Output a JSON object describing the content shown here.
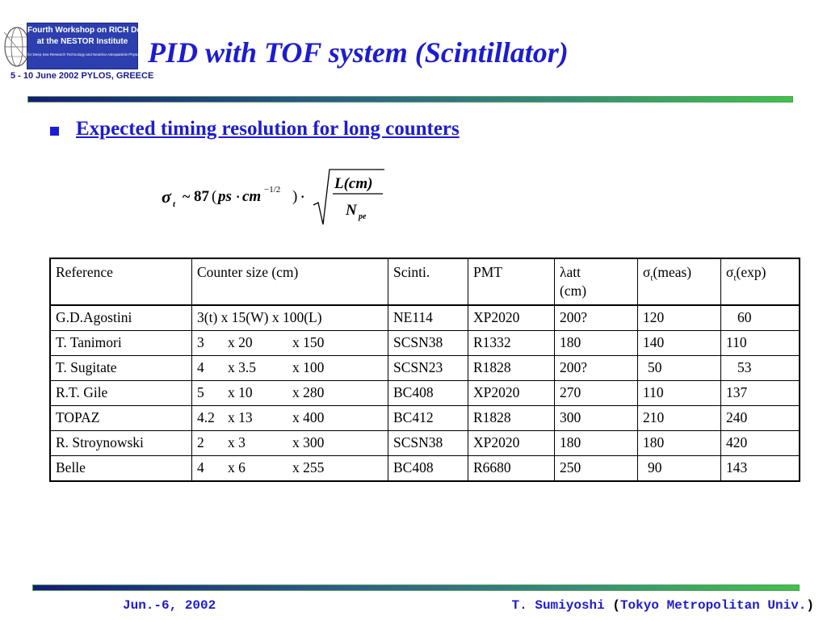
{
  "colors": {
    "title": "#1c1cd0",
    "rule_start": "#1a1a78",
    "rule_end": "#42c24a"
  },
  "logo": {
    "line1": "Fourth Workshop on RICH Detectors",
    "line2": "at the NESTOR Institute",
    "line3": "for Deep Sea Research Technology and Neutrino Astroparticle Physics",
    "date": "5 - 10 June 2002  PYLOS, GREECE"
  },
  "slide": {
    "title": "PID with TOF system (Scintillator)",
    "bullet": "Expected timing resolution for long counters"
  },
  "formula": {
    "sigma": "σ",
    "sigma_sub": "t",
    "tilde": "~",
    "coef": "87",
    "open": "(",
    "ps": "ps",
    "dot": "·",
    "cm": "cm",
    "exp": "−1/2",
    "close": ")",
    "dot2": "·",
    "num": "L(cm)",
    "den": "N",
    "den_sub": "pe"
  },
  "table": {
    "headers": {
      "reference": "Reference",
      "size": "Counter size (cm)",
      "scinti": "Scinti.",
      "pmt": "PMT",
      "lambda_sym": "λ",
      "lambda_rest": "att",
      "lambda_unit": "(cm)",
      "sigma_sym": "σ",
      "sigma_sub": "t",
      "meas": "(meas)",
      "exp": "(exp)"
    },
    "rows": [
      {
        "reference": "G.D.Agostini",
        "size_full": "3(t) x 15(W) x 100(L)",
        "scinti": "NE114",
        "pmt": "XP2020",
        "att": "200?",
        "meas": "120",
        "exp": "60"
      },
      {
        "reference": "T. Tanimori",
        "t": "3",
        "w": "x 20",
        "l": "x 150",
        "scinti": "SCSN38",
        "pmt": "R1332",
        "att": "180",
        "meas": "140",
        "exp": "110"
      },
      {
        "reference": "T. Sugitate",
        "t": "4",
        "w": "x 3.5",
        "l": "x 100",
        "scinti": "SCSN23",
        "pmt": "R1828",
        "att": "200?",
        "meas": "50",
        "exp": "53"
      },
      {
        "reference": "R.T. Gile",
        "t": "5",
        "w": "x 10",
        "l": "x 280",
        "scinti": "BC408",
        "pmt": "XP2020",
        "att": "270",
        "meas": "110",
        "exp": "137"
      },
      {
        "reference": "TOPAZ",
        "t": "4.2",
        "w": "x 13",
        "l": "x 400",
        "scinti": "BC412",
        "pmt": "R1828",
        "att": "300",
        "meas": "210",
        "exp": "240"
      },
      {
        "reference": "R. Stroynowski",
        "t": "2",
        "w": "x 3",
        "l": "x 300",
        "scinti": "SCSN38",
        "pmt": "XP2020",
        "att": "180",
        "meas": "180",
        "exp": "420"
      },
      {
        "reference": "Belle",
        "t": "4",
        "w": "x 6",
        "l": "x 255",
        "scinti": "BC408",
        "pmt": "R6680",
        "att": "250",
        "meas": "90",
        "exp": "143"
      }
    ]
  },
  "footer": {
    "date": "Jun.-6, 2002",
    "author": "T. Sumiyoshi",
    "open_paren": " (",
    "affiliation": "Tokyo Metropolitan Univ.",
    "close_paren": ")"
  }
}
